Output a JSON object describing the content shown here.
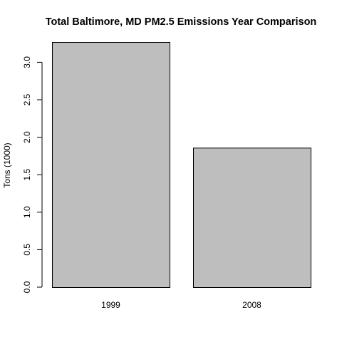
{
  "chart_data": {
    "type": "bar",
    "title": "Total Baltimore, MD PM2.5 Emissions Year Comparison",
    "xlabel": "",
    "ylabel": "Tons (1000)",
    "categories": [
      "1999",
      "2008"
    ],
    "values": [
      3.27,
      1.86
    ],
    "ylim": [
      0,
      3.27
    ],
    "yticks": [
      "0.0",
      "0.5",
      "1.0",
      "1.5",
      "2.0",
      "2.5",
      "3.0"
    ],
    "bar_color": "#bebebe",
    "grid": false,
    "legend": "none"
  }
}
